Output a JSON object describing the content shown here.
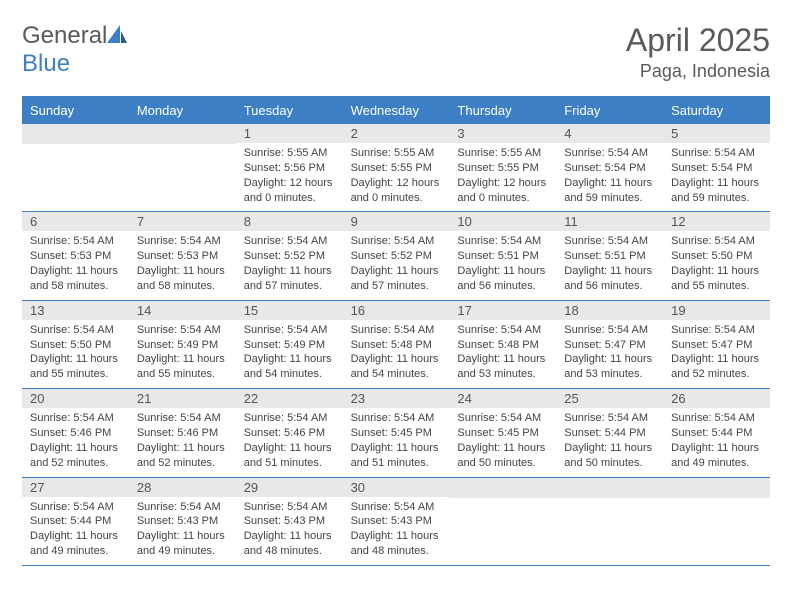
{
  "brand": {
    "name_gray": "General",
    "name_blue": "Blue"
  },
  "title": "April 2025",
  "location": "Paga, Indonesia",
  "colors": {
    "header_blue": "#3d7fc4",
    "daynum_bg": "#e8e8e8",
    "text": "#444444",
    "title_gray": "#5a5a5a"
  },
  "days_of_week": [
    "Sunday",
    "Monday",
    "Tuesday",
    "Wednesday",
    "Thursday",
    "Friday",
    "Saturday"
  ],
  "weeks": [
    [
      null,
      null,
      {
        "n": "1",
        "sr": "5:55 AM",
        "ss": "5:56 PM",
        "dl": "12 hours and 0 minutes."
      },
      {
        "n": "2",
        "sr": "5:55 AM",
        "ss": "5:55 PM",
        "dl": "12 hours and 0 minutes."
      },
      {
        "n": "3",
        "sr": "5:55 AM",
        "ss": "5:55 PM",
        "dl": "12 hours and 0 minutes."
      },
      {
        "n": "4",
        "sr": "5:54 AM",
        "ss": "5:54 PM",
        "dl": "11 hours and 59 minutes."
      },
      {
        "n": "5",
        "sr": "5:54 AM",
        "ss": "5:54 PM",
        "dl": "11 hours and 59 minutes."
      }
    ],
    [
      {
        "n": "6",
        "sr": "5:54 AM",
        "ss": "5:53 PM",
        "dl": "11 hours and 58 minutes."
      },
      {
        "n": "7",
        "sr": "5:54 AM",
        "ss": "5:53 PM",
        "dl": "11 hours and 58 minutes."
      },
      {
        "n": "8",
        "sr": "5:54 AM",
        "ss": "5:52 PM",
        "dl": "11 hours and 57 minutes."
      },
      {
        "n": "9",
        "sr": "5:54 AM",
        "ss": "5:52 PM",
        "dl": "11 hours and 57 minutes."
      },
      {
        "n": "10",
        "sr": "5:54 AM",
        "ss": "5:51 PM",
        "dl": "11 hours and 56 minutes."
      },
      {
        "n": "11",
        "sr": "5:54 AM",
        "ss": "5:51 PM",
        "dl": "11 hours and 56 minutes."
      },
      {
        "n": "12",
        "sr": "5:54 AM",
        "ss": "5:50 PM",
        "dl": "11 hours and 55 minutes."
      }
    ],
    [
      {
        "n": "13",
        "sr": "5:54 AM",
        "ss": "5:50 PM",
        "dl": "11 hours and 55 minutes."
      },
      {
        "n": "14",
        "sr": "5:54 AM",
        "ss": "5:49 PM",
        "dl": "11 hours and 55 minutes."
      },
      {
        "n": "15",
        "sr": "5:54 AM",
        "ss": "5:49 PM",
        "dl": "11 hours and 54 minutes."
      },
      {
        "n": "16",
        "sr": "5:54 AM",
        "ss": "5:48 PM",
        "dl": "11 hours and 54 minutes."
      },
      {
        "n": "17",
        "sr": "5:54 AM",
        "ss": "5:48 PM",
        "dl": "11 hours and 53 minutes."
      },
      {
        "n": "18",
        "sr": "5:54 AM",
        "ss": "5:47 PM",
        "dl": "11 hours and 53 minutes."
      },
      {
        "n": "19",
        "sr": "5:54 AM",
        "ss": "5:47 PM",
        "dl": "11 hours and 52 minutes."
      }
    ],
    [
      {
        "n": "20",
        "sr": "5:54 AM",
        "ss": "5:46 PM",
        "dl": "11 hours and 52 minutes."
      },
      {
        "n": "21",
        "sr": "5:54 AM",
        "ss": "5:46 PM",
        "dl": "11 hours and 52 minutes."
      },
      {
        "n": "22",
        "sr": "5:54 AM",
        "ss": "5:46 PM",
        "dl": "11 hours and 51 minutes."
      },
      {
        "n": "23",
        "sr": "5:54 AM",
        "ss": "5:45 PM",
        "dl": "11 hours and 51 minutes."
      },
      {
        "n": "24",
        "sr": "5:54 AM",
        "ss": "5:45 PM",
        "dl": "11 hours and 50 minutes."
      },
      {
        "n": "25",
        "sr": "5:54 AM",
        "ss": "5:44 PM",
        "dl": "11 hours and 50 minutes."
      },
      {
        "n": "26",
        "sr": "5:54 AM",
        "ss": "5:44 PM",
        "dl": "11 hours and 49 minutes."
      }
    ],
    [
      {
        "n": "27",
        "sr": "5:54 AM",
        "ss": "5:44 PM",
        "dl": "11 hours and 49 minutes."
      },
      {
        "n": "28",
        "sr": "5:54 AM",
        "ss": "5:43 PM",
        "dl": "11 hours and 49 minutes."
      },
      {
        "n": "29",
        "sr": "5:54 AM",
        "ss": "5:43 PM",
        "dl": "11 hours and 48 minutes."
      },
      {
        "n": "30",
        "sr": "5:54 AM",
        "ss": "5:43 PM",
        "dl": "11 hours and 48 minutes."
      },
      null,
      null,
      null
    ]
  ],
  "labels": {
    "sunrise": "Sunrise:",
    "sunset": "Sunset:",
    "daylight": "Daylight:"
  }
}
